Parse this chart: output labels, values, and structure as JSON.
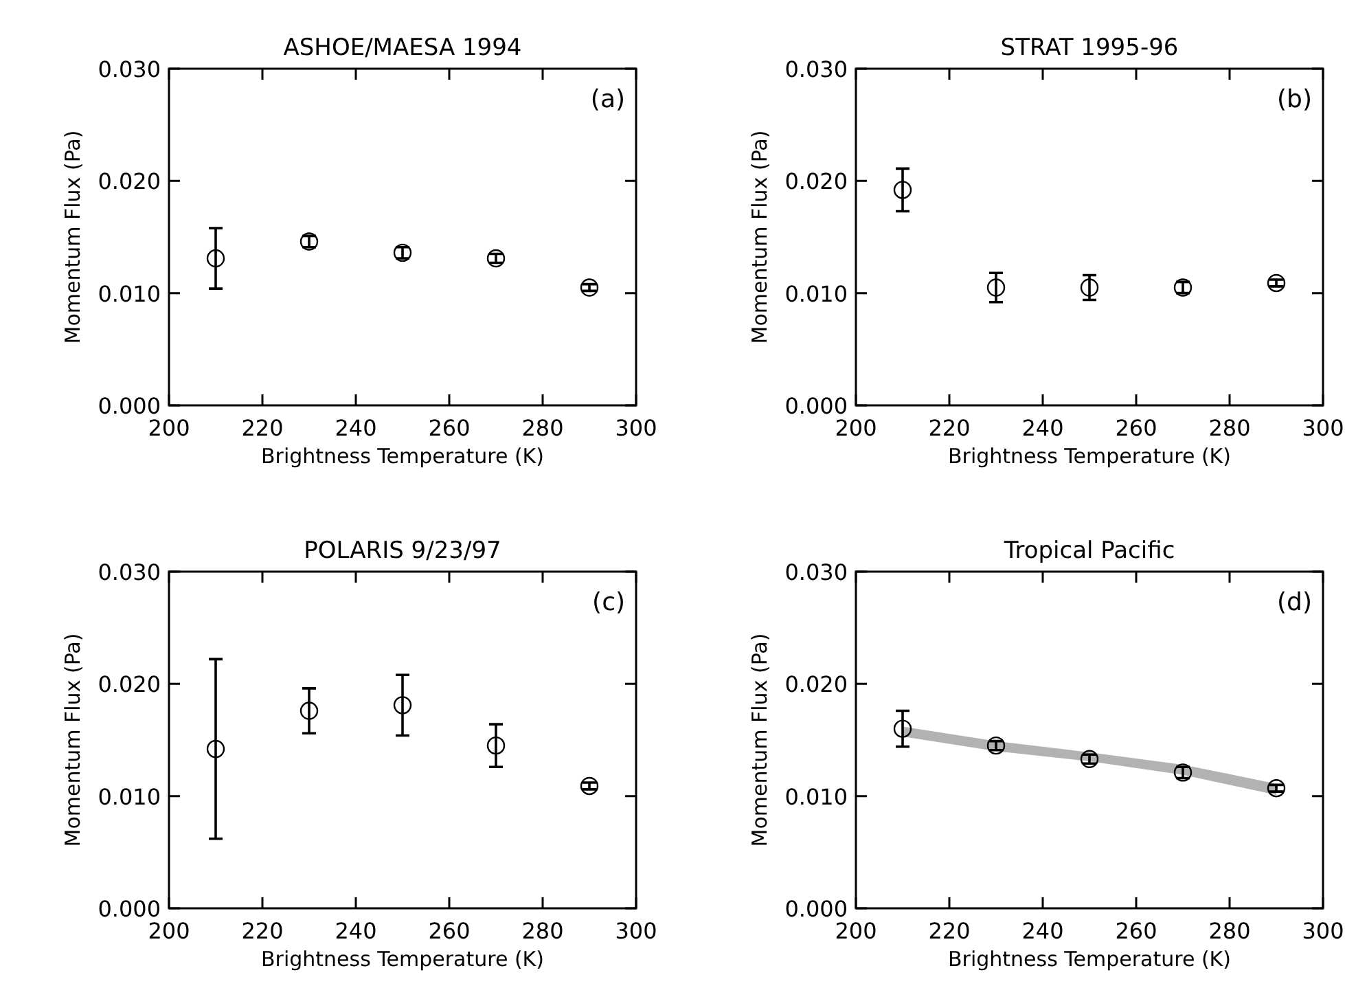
{
  "chart_data": [
    {
      "type": "scatter",
      "title": "ASHOE/MAESA 1994",
      "xlabel": "Brightness Temperature (K)",
      "ylabel": "Momentum Flux (Pa)",
      "annotations": [
        "(a)"
      ],
      "marker": "circle",
      "xlim": [
        200,
        300
      ],
      "xticks": [
        200,
        220,
        240,
        260,
        280,
        300
      ],
      "ylim": [
        0,
        0.03
      ],
      "yticks": [
        {
          "value": 0,
          "label": "0.000"
        },
        {
          "value": 0.01,
          "label": "0.010"
        },
        {
          "value": 0.02,
          "label": "0.020"
        },
        {
          "value": 0.03,
          "label": "0.030"
        }
      ],
      "x": [
        210,
        230,
        250,
        270,
        290
      ],
      "series": [
        {
          "color": "#000000",
          "values": [
            0.0131,
            0.0146,
            0.0136,
            0.0131,
            0.0105
          ],
          "errors": [
            0.0027,
            0.0005,
            0.0005,
            0.0004,
            0.0003
          ]
        }
      ]
    },
    {
      "type": "scatter",
      "title": "STRAT 1995-96",
      "xlabel": "Brightness Temperature (K)",
      "ylabel": "Momentum Flux (Pa)",
      "annotations": [
        "(b)"
      ],
      "marker": "circle",
      "xlim": [
        200,
        300
      ],
      "xticks": [
        200,
        220,
        240,
        260,
        280,
        300
      ],
      "ylim": [
        0,
        0.03
      ],
      "yticks": [
        {
          "value": 0,
          "label": "0.000"
        },
        {
          "value": 0.01,
          "label": "0.010"
        },
        {
          "value": 0.02,
          "label": "0.020"
        },
        {
          "value": 0.03,
          "label": "0.030"
        }
      ],
      "x": [
        210,
        230,
        250,
        270,
        290
      ],
      "series": [
        {
          "color": "#000000",
          "values": [
            0.0192,
            0.0105,
            0.0105,
            0.0105,
            0.0109
          ],
          "errors": [
            0.0019,
            0.0013,
            0.0011,
            0.0005,
            0.0003
          ]
        }
      ]
    },
    {
      "type": "scatter",
      "title": "POLARIS 9/23/97",
      "xlabel": "Brightness Temperature (K)",
      "ylabel": "Momentum Flux (Pa)",
      "annotations": [
        "(c)"
      ],
      "marker": "circle",
      "xlim": [
        200,
        300
      ],
      "xticks": [
        200,
        220,
        240,
        260,
        280,
        300
      ],
      "ylim": [
        0,
        0.03
      ],
      "yticks": [
        {
          "value": 0,
          "label": "0.000"
        },
        {
          "value": 0.01,
          "label": "0.010"
        },
        {
          "value": 0.02,
          "label": "0.020"
        },
        {
          "value": 0.03,
          "label": "0.030"
        }
      ],
      "x": [
        210,
        230,
        250,
        270,
        290
      ],
      "series": [
        {
          "color": "#000000",
          "values": [
            0.0142,
            0.0176,
            0.0181,
            0.0145,
            0.0109
          ],
          "errors": [
            0.008,
            0.002,
            0.0027,
            0.0019,
            0.0003
          ]
        }
      ]
    },
    {
      "type": "scatter",
      "title": "Tropical Pacific",
      "xlabel": "Brightness Temperature (K)",
      "ylabel": "Momentum Flux (Pa)",
      "annotations": [
        "(d)"
      ],
      "marker": "circle",
      "xlim": [
        200,
        300
      ],
      "xticks": [
        200,
        220,
        240,
        260,
        280,
        300
      ],
      "ylim": [
        0,
        0.03
      ],
      "yticks": [
        {
          "value": 0,
          "label": "0.000"
        },
        {
          "value": 0.01,
          "label": "0.010"
        },
        {
          "value": 0.02,
          "label": "0.020"
        },
        {
          "value": 0.03,
          "label": "0.030"
        }
      ],
      "x": [
        210,
        230,
        250,
        270,
        290
      ],
      "series": [
        {
          "color": "#000000",
          "values": [
            0.016,
            0.0145,
            0.0133,
            0.0121,
            0.0107
          ],
          "errors": [
            0.0016,
            0.0004,
            0.0004,
            0.0005,
            0.0003
          ],
          "lower": [
            0.0153,
            0.014,
            0.0131,
            0.0119,
            0.0101
          ],
          "upper": [
            0.0162,
            0.0149,
            0.0139,
            0.0128,
            0.0111
          ]
        }
      ]
    }
  ]
}
